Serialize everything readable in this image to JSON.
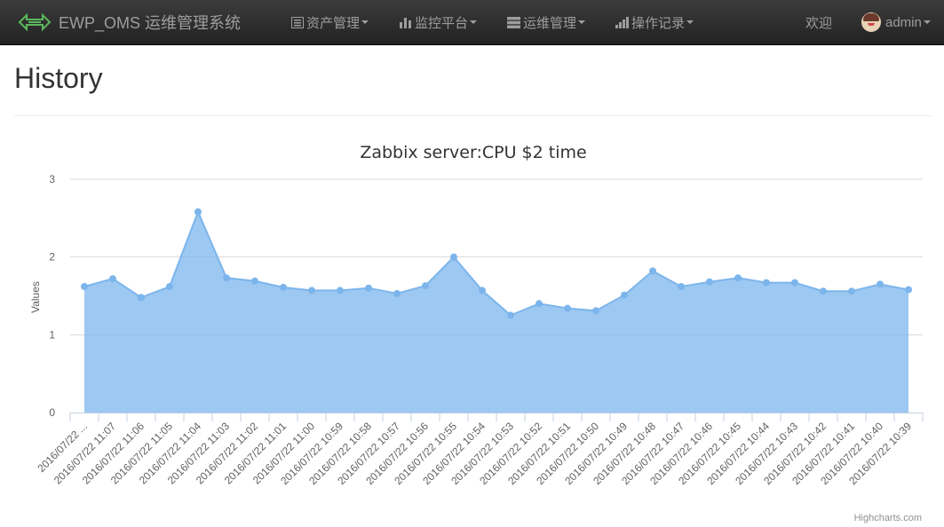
{
  "navbar": {
    "brand": "EWP_OMS 运维管理系统",
    "menus": [
      {
        "label": "资产管理",
        "icon": "list-icon"
      },
      {
        "label": "监控平台",
        "icon": "bar-chart-icon"
      },
      {
        "label": "运维管理",
        "icon": "server-icon"
      },
      {
        "label": "操作记录",
        "icon": "tasks-icon"
      }
    ],
    "welcome": "欢迎",
    "user": "admin"
  },
  "page": {
    "title": "History"
  },
  "chart_data": {
    "type": "area",
    "title": "Zabbix server:CPU $2 time",
    "ylabel": "Values",
    "ylim": [
      0,
      3
    ],
    "yticks": [
      "0",
      "1",
      "2",
      "3"
    ],
    "credit": "Highcharts.com",
    "color": "#7cb5ec",
    "grid": true,
    "categories": [
      "2016/07/22 ...",
      "2016/07/22 11:07",
      "2016/07/22 11:06",
      "2016/07/22 11:05",
      "2016/07/22 11:04",
      "2016/07/22 11:03",
      "2016/07/22 11:02",
      "2016/07/22 11:01",
      "2016/07/22 11:00",
      "2016/07/22 10:59",
      "2016/07/22 10:58",
      "2016/07/22 10:57",
      "2016/07/22 10:56",
      "2016/07/22 10:55",
      "2016/07/22 10:54",
      "2016/07/22 10:53",
      "2016/07/22 10:52",
      "2016/07/22 10:51",
      "2016/07/22 10:50",
      "2016/07/22 10:49",
      "2016/07/22 10:48",
      "2016/07/22 10:47",
      "2016/07/22 10:46",
      "2016/07/22 10:45",
      "2016/07/22 10:44",
      "2016/07/22 10:43",
      "2016/07/22 10:42",
      "2016/07/22 10:41",
      "2016/07/22 10:40",
      "2016/07/22 10:39"
    ],
    "values": [
      1.62,
      1.72,
      1.48,
      1.62,
      2.58,
      1.73,
      1.69,
      1.61,
      1.57,
      1.57,
      1.6,
      1.53,
      1.63,
      2.0,
      1.57,
      1.25,
      1.4,
      1.34,
      1.31,
      1.51,
      1.82,
      1.62,
      1.68,
      1.73,
      1.67,
      1.67,
      1.56,
      1.56,
      1.65,
      1.58
    ]
  }
}
